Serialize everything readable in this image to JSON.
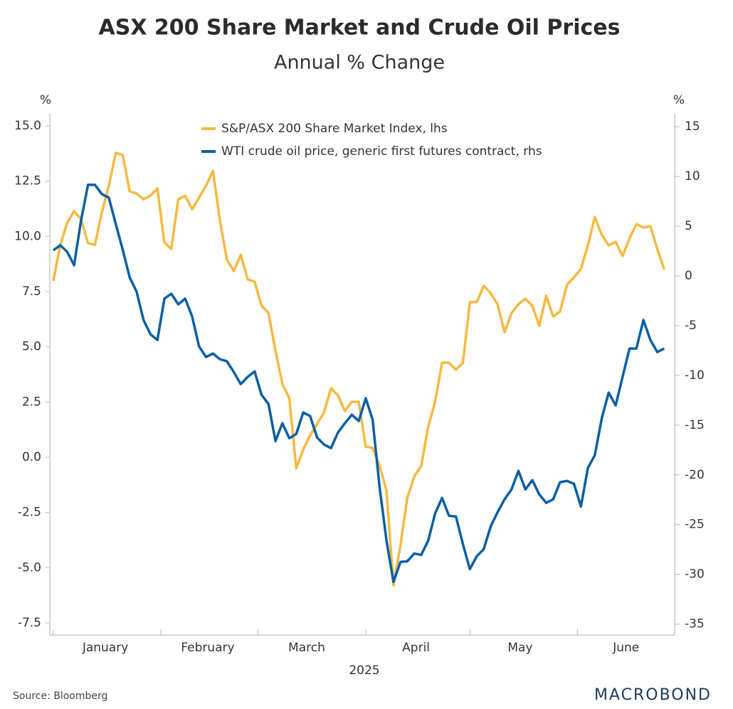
{
  "chart_data": {
    "type": "line",
    "title": "ASX 200 Share Market and Crude Oil Prices",
    "subtitle": "Annual % Change",
    "ylabel": "%",
    "y2label": "%",
    "xlabel": "2025",
    "source": "Source: Bloomberg",
    "brand": "MACROBOND",
    "legend_position": "top",
    "grid": false,
    "x": [
      0,
      2,
      4,
      6,
      8,
      10,
      12,
      14,
      16,
      18,
      20,
      22,
      24,
      26,
      28,
      30,
      32,
      34,
      36,
      38,
      40,
      42,
      44,
      46,
      48,
      50,
      52,
      54,
      56,
      58,
      60,
      62,
      64,
      66,
      68,
      70,
      72,
      74,
      76,
      78,
      80,
      82,
      84,
      86,
      88,
      90,
      92,
      94,
      96,
      98,
      100,
      102,
      104,
      106,
      108,
      110,
      112,
      114,
      116,
      118,
      120,
      122,
      124,
      126,
      128,
      130,
      132,
      134,
      136,
      138,
      140,
      142,
      144,
      146,
      148,
      150,
      152,
      154,
      156,
      158,
      160,
      162,
      164,
      166,
      168,
      170,
      172,
      174,
      176
    ],
    "xlim": [
      -1,
      179
    ],
    "xticks": [
      {
        "value": 15,
        "label": "January"
      },
      {
        "value": 44.5,
        "label": "February"
      },
      {
        "value": 73,
        "label": "March"
      },
      {
        "value": 104.5,
        "label": "April"
      },
      {
        "value": 134.5,
        "label": "May"
      },
      {
        "value": 165,
        "label": "June"
      }
    ],
    "xminorticks": [
      0,
      31,
      59,
      90,
      120,
      151
    ],
    "ylim": [
      -8.05,
      15.55
    ],
    "yticks": [
      {
        "value": 15,
        "label": "15.0"
      },
      12.5,
      {
        "value": 10,
        "label": "10.0"
      },
      7.5,
      {
        "value": 5,
        "label": "5.0"
      },
      2.5,
      {
        "value": 0,
        "label": "0.0"
      },
      -2.5,
      {
        "value": -5,
        "label": "-5.0"
      },
      -7.5
    ],
    "y2lim": [
      -36.1,
      16.3
    ],
    "y2ticks": [
      15,
      10,
      5,
      0,
      -5,
      -10,
      -15,
      -20,
      -25,
      -30,
      -35
    ],
    "series": [
      {
        "name": "S&P/ASX 200 Share Market Index, lhs",
        "color": "#f5b942",
        "axis": "y",
        "values": [
          7.98,
          9.59,
          10.62,
          11.14,
          10.78,
          9.69,
          9.62,
          11.1,
          12.29,
          13.78,
          13.68,
          12.04,
          11.94,
          11.68,
          11.84,
          12.17,
          9.72,
          9.43,
          11.68,
          11.84,
          11.23,
          11.75,
          12.29,
          12.97,
          10.72,
          8.95,
          8.43,
          9.17,
          8.05,
          7.95,
          6.86,
          6.53,
          4.83,
          3.32,
          2.67,
          -0.5,
          0.35,
          0.99,
          1.51,
          2.03,
          3.12,
          2.8,
          2.09,
          2.51,
          2.51,
          0.48,
          0.42,
          -0.39,
          -1.51,
          -5.8,
          -3.99,
          -1.83,
          -0.87,
          -0.39,
          1.38,
          2.51,
          4.28,
          4.28,
          3.96,
          4.28,
          7.02,
          7.02,
          7.76,
          7.43,
          6.92,
          5.66,
          6.53,
          6.92,
          7.18,
          6.86,
          5.95,
          7.31,
          6.37,
          6.6,
          7.82,
          8.14,
          8.53,
          9.59,
          10.88,
          10.07,
          9.59,
          9.75,
          9.11,
          9.91,
          10.56,
          10.4,
          10.46,
          9.43,
          8.5
        ]
      },
      {
        "name": "WTI crude oil price, generic first futures contract, rhs",
        "color": "#0a5fa5",
        "axis": "y2",
        "values": [
          2.58,
          3.08,
          2.43,
          1.07,
          5.58,
          9.16,
          9.16,
          8.23,
          7.87,
          5.22,
          2.65,
          -0.14,
          -1.57,
          -4.43,
          -5.87,
          -6.44,
          -2.29,
          -1.79,
          -2.86,
          -2.29,
          -4.08,
          -7.08,
          -8.15,
          -7.8,
          -8.37,
          -8.58,
          -9.66,
          -10.87,
          -10.16,
          -9.59,
          -11.95,
          -12.88,
          -16.6,
          -14.81,
          -16.31,
          -15.88,
          -13.73,
          -14.09,
          -16.24,
          -16.95,
          -17.31,
          -15.74,
          -14.81,
          -13.95,
          -14.59,
          -12.3,
          -14.45,
          -21.24,
          -26.61,
          -30.76,
          -28.76,
          -28.68,
          -27.9,
          -28.04,
          -26.61,
          -23.89,
          -22.32,
          -24.11,
          -24.18,
          -26.97,
          -29.47,
          -28.18,
          -27.47,
          -25.18,
          -23.75,
          -22.46,
          -21.46,
          -19.6,
          -21.46,
          -20.53,
          -21.96,
          -22.82,
          -22.46,
          -20.74,
          -20.6,
          -20.89,
          -23.18,
          -19.31,
          -18.03,
          -14.31,
          -11.73,
          -13.02,
          -10.16,
          -7.3,
          -7.3,
          -4.43,
          -6.44,
          -7.65,
          -7.3
        ]
      }
    ]
  }
}
